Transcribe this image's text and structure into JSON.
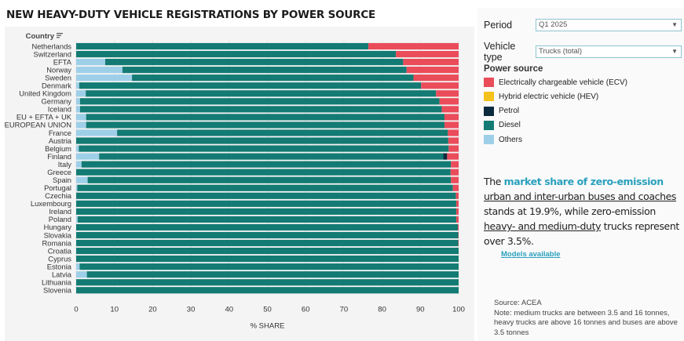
{
  "title": "NEW HEAVY-DUTY VEHICLE REGISTRATIONS BY POWER SOURCE",
  "filters": [
    {
      "label": "Period",
      "value": "Q1 2025"
    },
    {
      "label": "Vehicle type",
      "value": "Trucks (total)"
    }
  ],
  "legend_title": "Power source",
  "insight": {
    "p1": "The ",
    "h1": "market share of zero-emission",
    "p2": " ",
    "u1": "urban and inter-urban buses and coaches",
    "p3": " stands at 19.9%, while zero-emission ",
    "u2": "heavy- and medium-duty",
    "p4": " trucks represent over 3.5%."
  },
  "models_link": "Models available",
  "source": {
    "line1": "Source: ACEA",
    "line2": "Note: medium trucks are between 3.5 and 16 tonnes, heavy trucks are above 16 tonnes and buses are above 3.5 tonnes"
  },
  "chart_data": {
    "type": "bar",
    "orientation": "horizontal",
    "stacked": true,
    "category_header": "Country",
    "xlabel": "% SHARE",
    "xlim": [
      0,
      100
    ],
    "xticks": [
      0,
      10,
      20,
      30,
      40,
      50,
      60,
      70,
      80,
      90,
      100
    ],
    "grid": true,
    "legend_placement": "right",
    "categories": [
      "Netherlands",
      "Switzerland",
      "EFTA",
      "Norway",
      "Sweden",
      "Denmark",
      "United Kingdom",
      "Germany",
      "Iceland",
      "EU + EFTA + UK",
      "EUROPEAN UNION",
      "France",
      "Austria",
      "Belgium",
      "Finland",
      "Italy",
      "Greece",
      "Spain",
      "Portugal",
      "Czechia",
      "Luxembourg",
      "Ireland",
      "Poland",
      "Hungary",
      "Slovakia",
      "Romania",
      "Croatia",
      "Cyprus",
      "Estonia",
      "Latvia",
      "Lithuania",
      "Slovenia"
    ],
    "series": [
      {
        "name": "Others",
        "color": "#9ecfe8",
        "values": [
          0.0,
          0.0,
          7.6,
          12.1,
          14.6,
          0.8,
          2.5,
          1.0,
          1.0,
          2.6,
          2.6,
          10.7,
          0.0,
          0.7,
          6.0,
          1.4,
          0.0,
          3.0,
          0.3,
          0.0,
          0.0,
          0.0,
          0.4,
          0.0,
          0.0,
          0.0,
          0.0,
          0.0,
          0.9,
          2.8,
          0.0,
          0.0
        ]
      },
      {
        "name": "Diesel",
        "color": "#137b73",
        "values": [
          76.4,
          83.6,
          77.9,
          74.3,
          73.6,
          89.4,
          91.6,
          94.0,
          94.6,
          93.7,
          93.7,
          86.5,
          97.3,
          96.7,
          90.0,
          96.6,
          97.9,
          95.0,
          98.2,
          99.3,
          99.4,
          99.4,
          99.0,
          99.8,
          99.9,
          99.9,
          100.0,
          100.0,
          99.1,
          97.2,
          100.0,
          100.0
        ]
      },
      {
        "name": "Petrol",
        "color": "#0d2b3e",
        "values": [
          0,
          0,
          0,
          0,
          0,
          0,
          0,
          0,
          0,
          0,
          0,
          0,
          0,
          0,
          1.0,
          0,
          0,
          0,
          0,
          0,
          0,
          0,
          0,
          0,
          0,
          0,
          0,
          0,
          0,
          0,
          0,
          0
        ]
      },
      {
        "name": "Hybrid electric vehicle (HEV)",
        "color": "#f5c21b",
        "values": [
          0,
          0,
          0,
          0,
          0,
          0,
          0,
          0,
          0,
          0,
          0,
          0,
          0,
          0,
          0,
          0,
          0,
          0,
          0,
          0,
          0,
          0,
          0,
          0,
          0,
          0,
          0,
          0,
          0,
          0,
          0,
          0
        ]
      },
      {
        "name": "Electrically chargeable vehicle (ECV)",
        "color": "#ea4c5a",
        "values": [
          23.6,
          16.4,
          14.5,
          13.6,
          11.8,
          9.8,
          5.9,
          5.0,
          4.4,
          3.7,
          3.7,
          2.8,
          2.7,
          2.6,
          3.0,
          2.0,
          2.1,
          2.0,
          1.5,
          0.7,
          0.6,
          0.6,
          0.6,
          0.2,
          0.1,
          0.1,
          0.0,
          0.0,
          0.0,
          0.0,
          0.0,
          0.0
        ]
      }
    ],
    "legend_order": [
      "Electrically chargeable vehicle (ECV)",
      "Hybrid electric vehicle (HEV)",
      "Petrol",
      "Diesel",
      "Others"
    ]
  }
}
